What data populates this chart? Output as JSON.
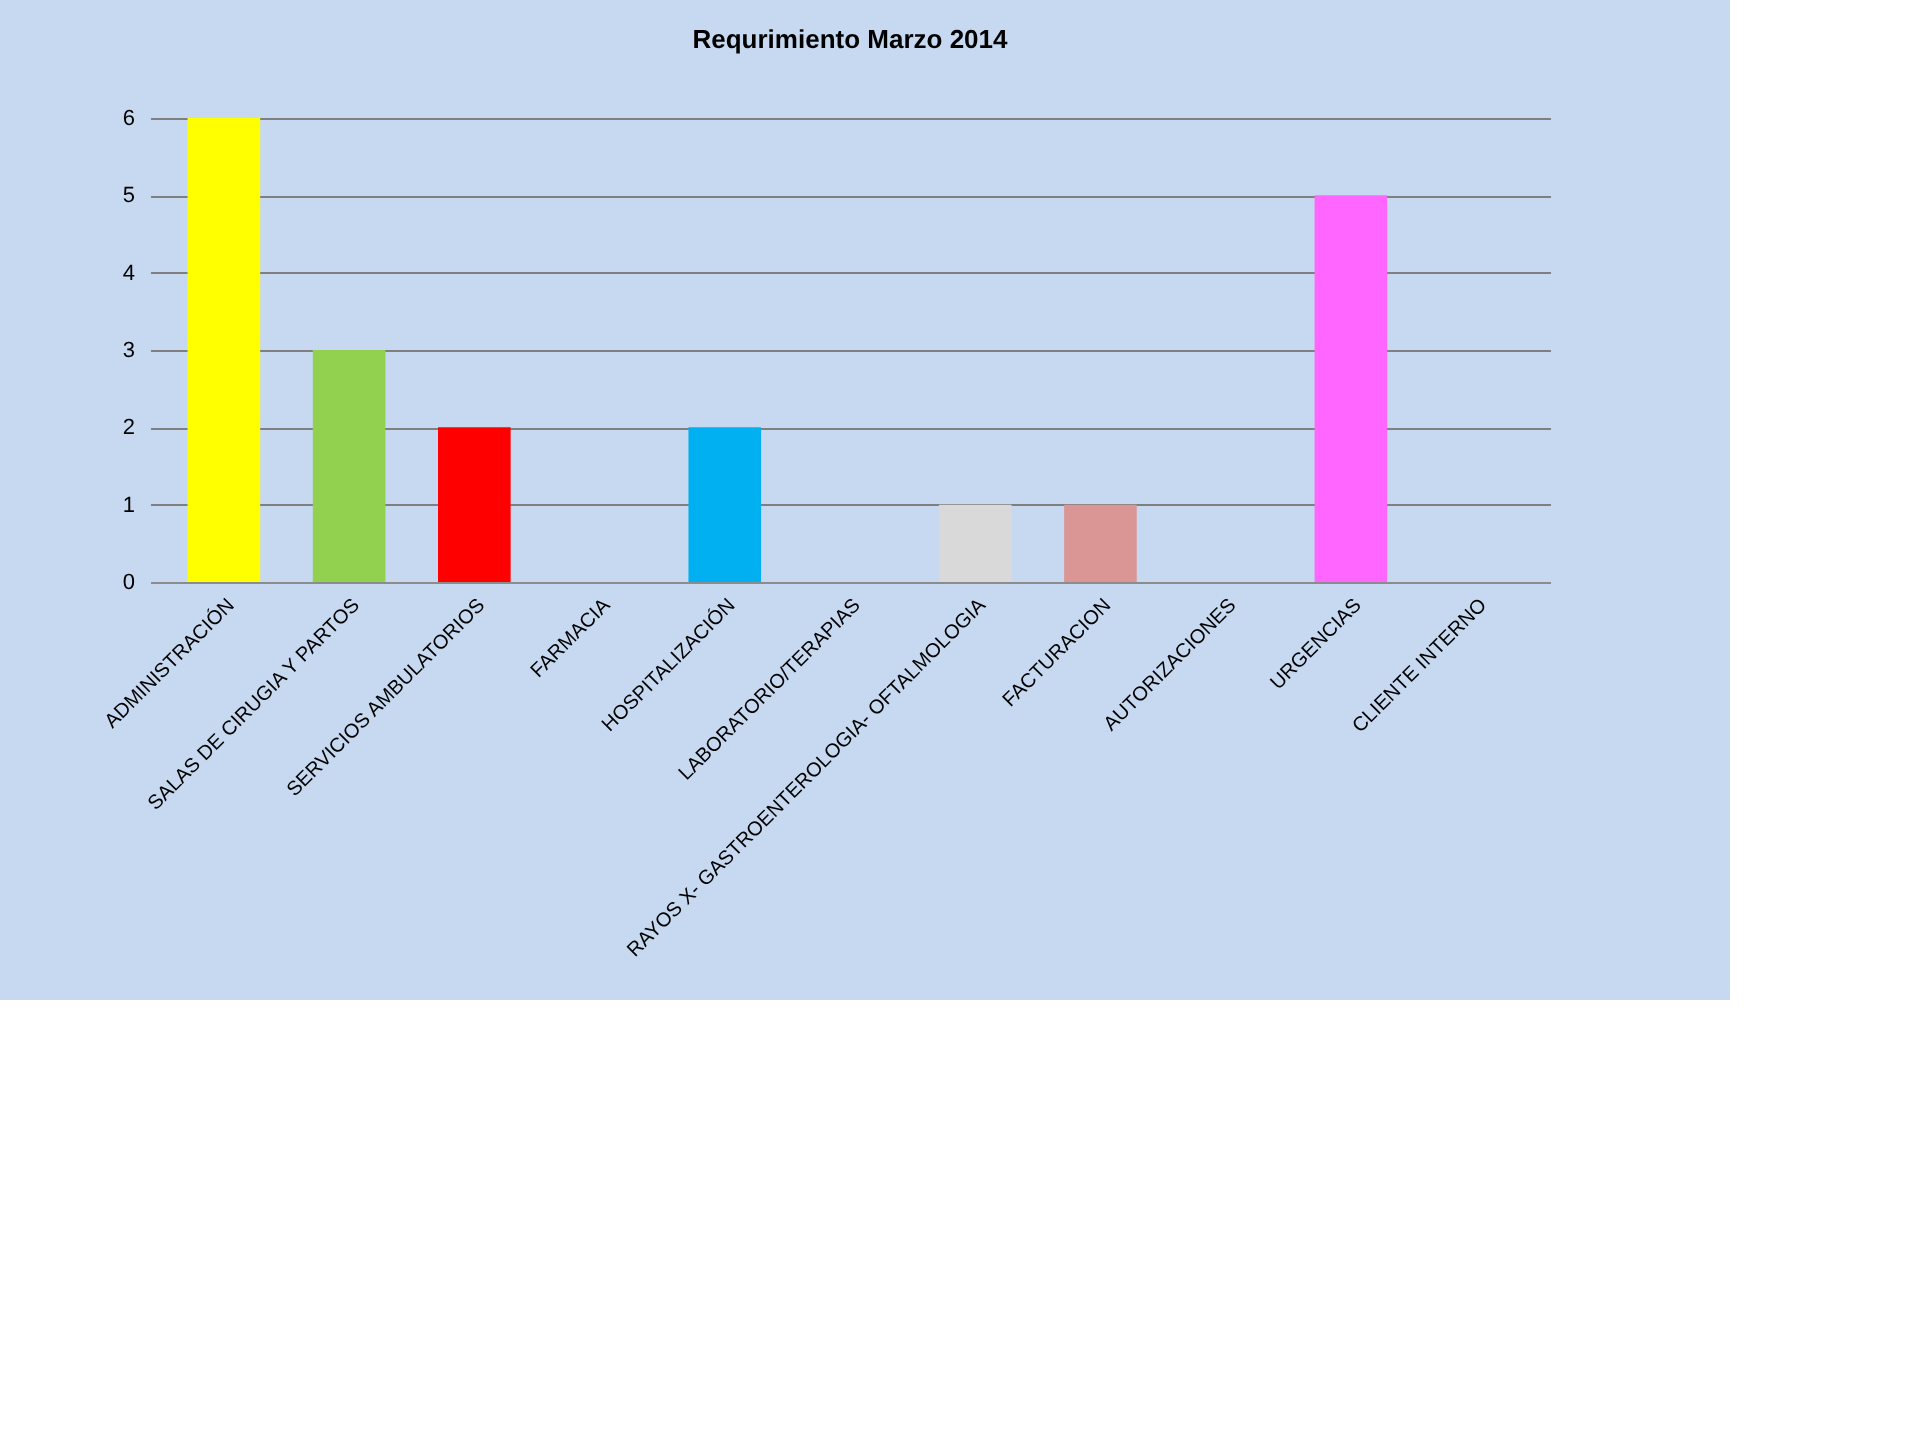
{
  "chart_data": {
    "type": "bar",
    "title": "Requrimiento Marzo 2014",
    "categories": [
      "ADMINISTRACIÓN",
      "SALAS DE CIRUGIA Y PARTOS",
      "SERVICIOS AMBULATORIOS",
      "FARMACIA",
      "HOSPITALIZACIÓN",
      "LABORATORIO/TERAPIAS",
      "RAYOS X- GASTROENTEROLOGIA- OFTALMOLOGIA",
      "FACTURACION",
      "AUTORIZACIONES",
      "URGENCIAS",
      "CLIENTE INTERNO"
    ],
    "values": [
      6,
      3,
      2,
      0,
      2,
      0,
      1,
      1,
      0,
      5,
      0
    ],
    "colors": [
      "#ffff00",
      "#92d050",
      "#ff0000",
      null,
      "#00b0f0",
      null,
      "#d9d9d9",
      "#da9694",
      null,
      "#ff66ff",
      null
    ],
    "ylim": [
      0,
      6
    ],
    "yticks": [
      0,
      1,
      2,
      3,
      4,
      5,
      6
    ],
    "grid": "y"
  }
}
